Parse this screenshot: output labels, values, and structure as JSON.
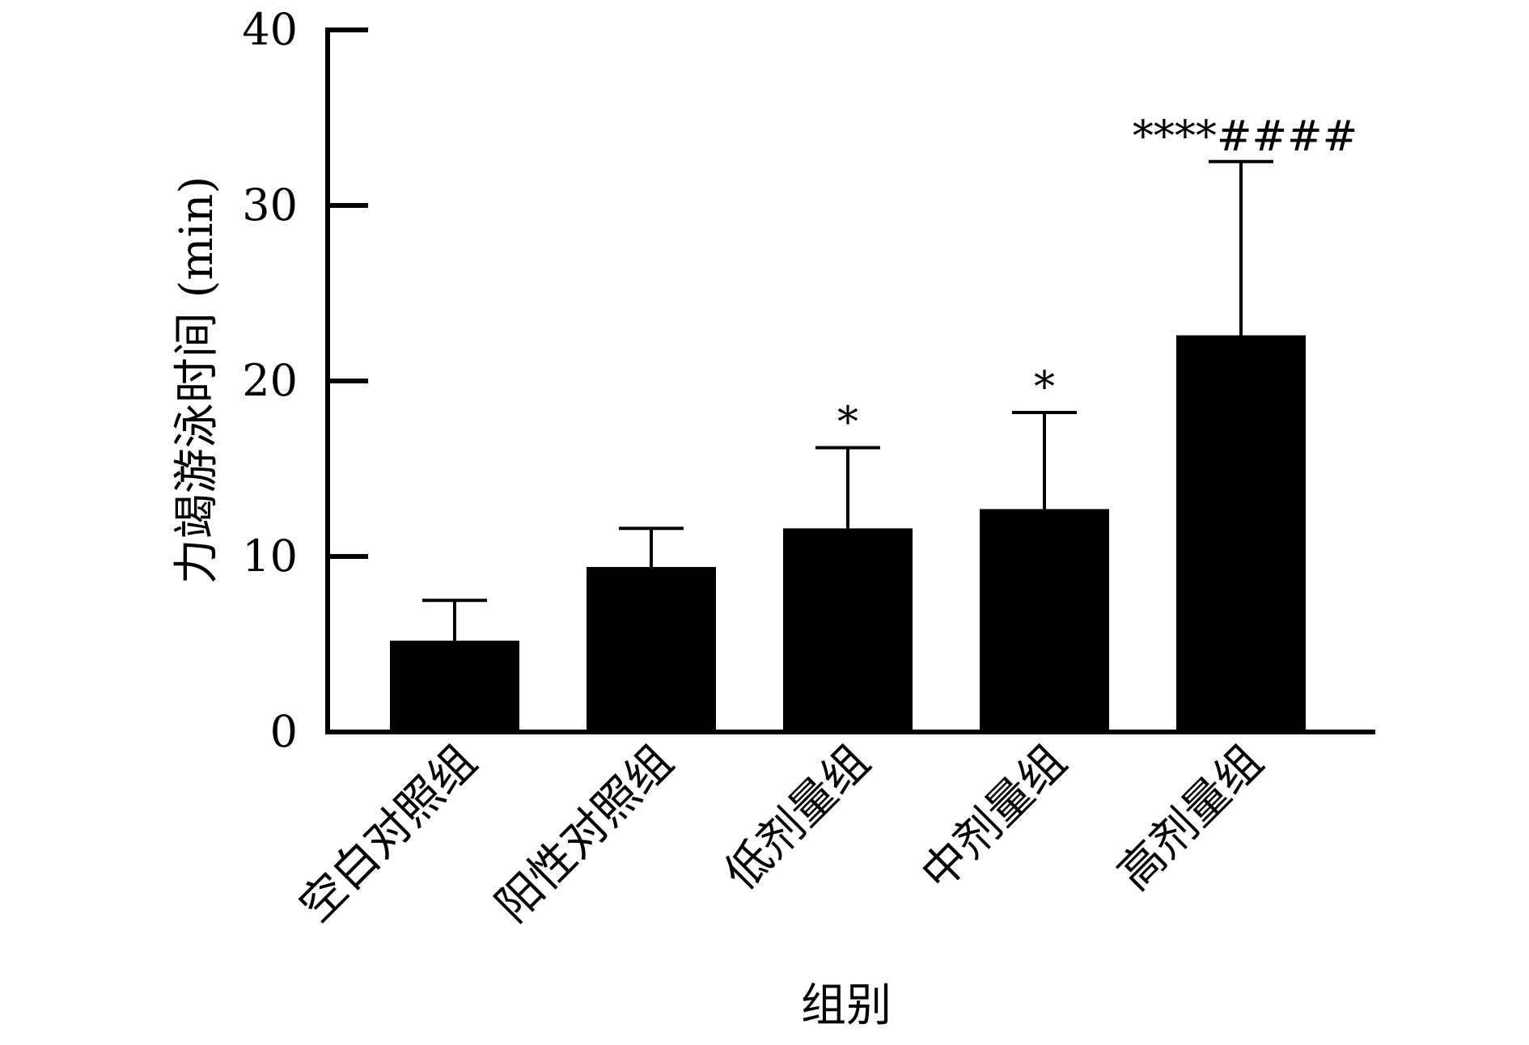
{
  "chart_data": {
    "type": "bar",
    "categories": [
      "空白对照组",
      "阳性对照组",
      "低剂量组",
      "中剂量组",
      "高剂量组"
    ],
    "values": [
      5.2,
      9.4,
      11.6,
      12.7,
      22.6
    ],
    "errors": [
      2.3,
      2.2,
      4.6,
      5.5,
      9.9
    ],
    "annotations": [
      "",
      "",
      "*",
      "*",
      "****####"
    ],
    "xlabel": "组别",
    "ylabel": "力竭游泳时间 (min)",
    "ylim": [
      0,
      40
    ],
    "yticks": [
      0,
      10,
      20,
      30,
      40
    ],
    "grid": false,
    "bar_color": "#000000"
  }
}
